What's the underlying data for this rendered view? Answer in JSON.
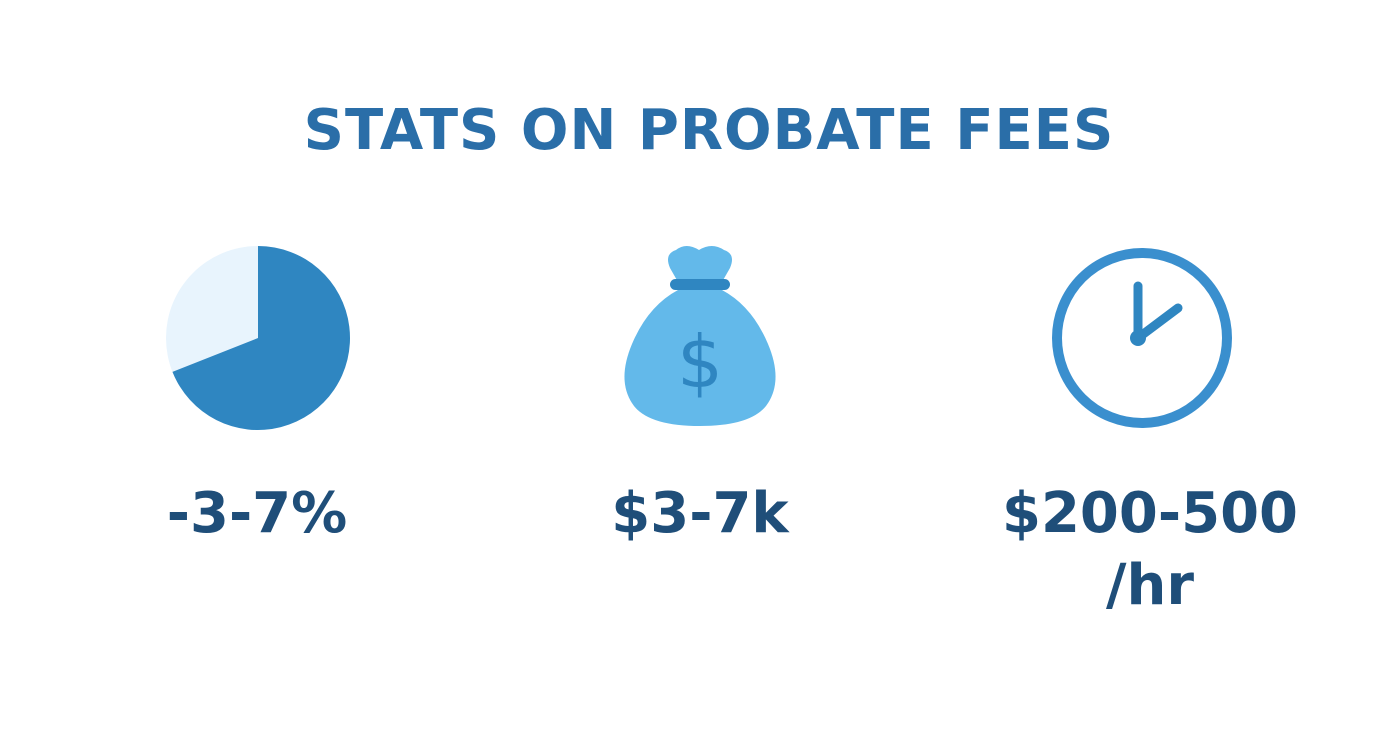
{
  "title": "STATS ON PROBATE FEES",
  "colors": {
    "title": "#2a6ea8",
    "stat_text": "#1f4e79",
    "pie_primary": "#2f86c1",
    "pie_secondary": "#e8f4fd",
    "bag_fill": "#63b9ea",
    "bag_accent": "#2f86c1",
    "clock_stroke": "#3a8fce",
    "clock_hands": "#2f86c1"
  },
  "stats": [
    {
      "icon": "pie-chart-icon",
      "lines": [
        "-3-7%"
      ],
      "pie_fraction": 0.69
    },
    {
      "icon": "money-bag-icon",
      "symbol": "$",
      "lines": [
        "$3-7k"
      ]
    },
    {
      "icon": "clock-icon",
      "lines": [
        "$200-500",
        "/hr"
      ]
    }
  ]
}
